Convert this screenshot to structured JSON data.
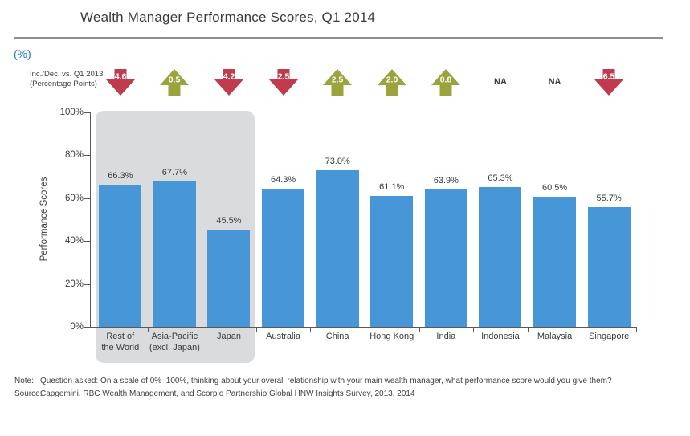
{
  "header": {
    "title": "Wealth Manager Performance Scores, Q1 2014",
    "unit_label": "(%)"
  },
  "change_row": {
    "label_line1": "Inc./Dec. vs. Q1 2013",
    "label_line2": "(Percentage Points)",
    "items": [
      {
        "value": "4.6",
        "direction": "down"
      },
      {
        "value": "0.5",
        "direction": "up"
      },
      {
        "value": "4.2",
        "direction": "down"
      },
      {
        "value": "2.5",
        "direction": "down"
      },
      {
        "value": "2.5",
        "direction": "up"
      },
      {
        "value": "2.0",
        "direction": "up"
      },
      {
        "value": "0.8",
        "direction": "up"
      },
      {
        "value": "NA",
        "direction": "na"
      },
      {
        "value": "NA",
        "direction": "na"
      },
      {
        "value": "6.5",
        "direction": "down"
      }
    ]
  },
  "chart_data": {
    "type": "bar",
    "title": "Wealth Manager Performance Scores, Q1 2014",
    "ylabel": "Performance Scores",
    "unit": "%",
    "ylim": [
      0,
      100
    ],
    "yticks": [
      "100%",
      "80%",
      "60%",
      "40%",
      "20%",
      "0%"
    ],
    "categories": [
      "Rest of the World",
      "Asia-Pacific (excl. Japan)",
      "Japan",
      "Australia",
      "China",
      "Hong Kong",
      "India",
      "Indonesia",
      "Malaysia",
      "Singapore"
    ],
    "categories_display": [
      {
        "line1": "Rest of",
        "line2": "the World"
      },
      {
        "line1": "Asia-Pacific",
        "line2": "(excl. Japan)"
      },
      {
        "line1": "Japan",
        "line2": ""
      },
      {
        "line1": "Australia",
        "line2": ""
      },
      {
        "line1": "China",
        "line2": ""
      },
      {
        "line1": "Hong Kong",
        "line2": ""
      },
      {
        "line1": "India",
        "line2": ""
      },
      {
        "line1": "Indonesia",
        "line2": ""
      },
      {
        "line1": "Malaysia",
        "line2": ""
      },
      {
        "line1": "Singapore",
        "line2": ""
      }
    ],
    "values": [
      66.3,
      67.7,
      45.5,
      64.3,
      73.0,
      61.1,
      63.9,
      65.3,
      60.5,
      55.7
    ],
    "value_labels": [
      "66.3%",
      "67.7%",
      "45.5%",
      "64.3%",
      "73.0%",
      "61.1%",
      "63.9%",
      "65.3%",
      "60.5%",
      "55.7%"
    ],
    "change_vs_q1_2013": [
      -4.6,
      0.5,
      -4.2,
      -2.5,
      2.5,
      2.0,
      0.8,
      null,
      null,
      -6.5
    ],
    "highlight_group": [
      "Rest of the World",
      "Asia-Pacific (excl. Japan)",
      "Japan"
    ],
    "legend_position": "none",
    "grid": false,
    "bar_color": "#4796d8",
    "highlight_bg_color": "#d9dbdd",
    "increase_color": "#9ba33d",
    "decrease_color": "#c13b4e"
  },
  "footer": {
    "note_label": "Note:",
    "note_text": "Question asked: On a scale of 0%–100%, thinking about your overall relationship with your main wealth manager, what performance score would you give them?",
    "source_label": "Source:",
    "source_text": "Capgemini, RBC Wealth Management, and Scorpio Partnership Global HNW Insights Survey, 2013, 2014"
  }
}
